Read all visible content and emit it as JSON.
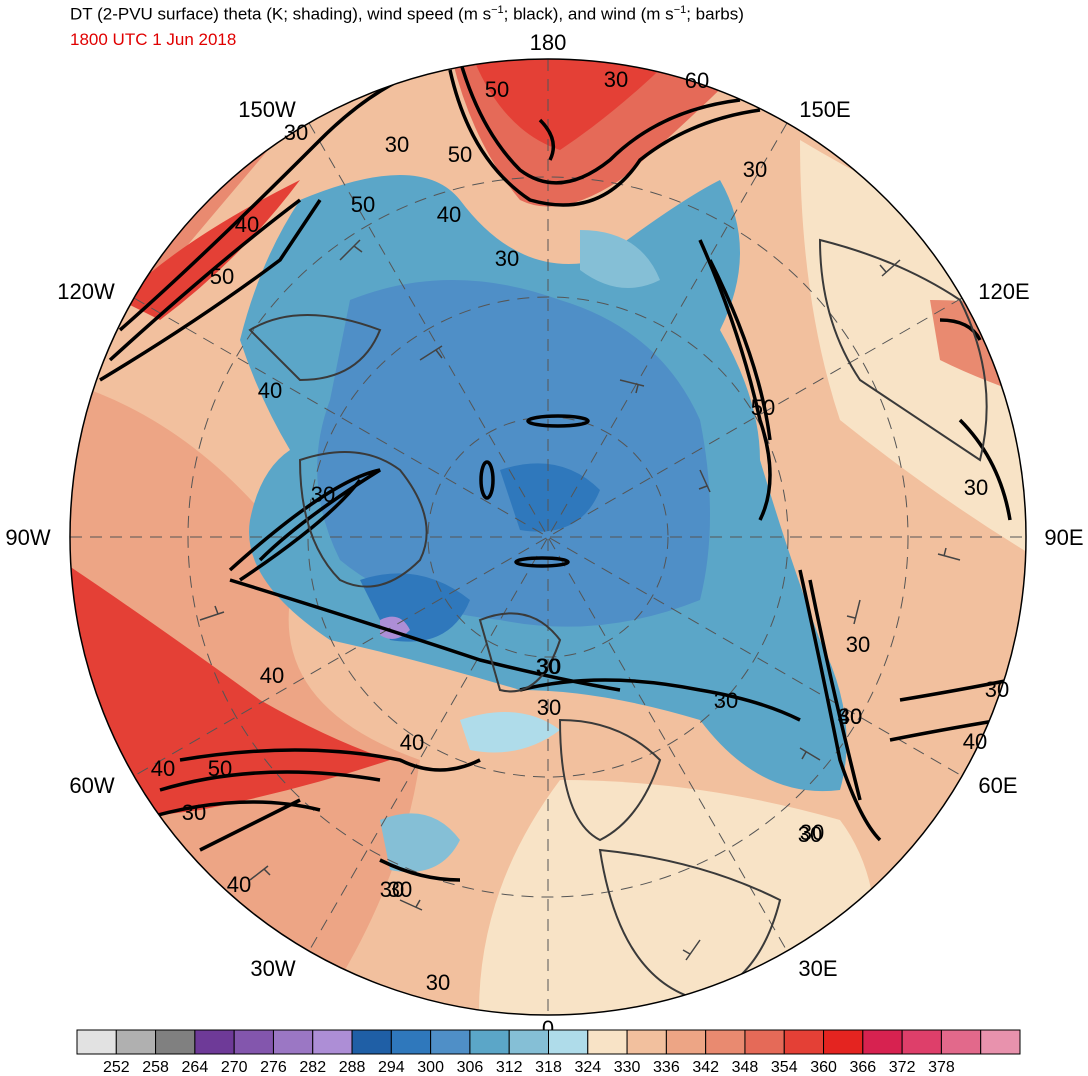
{
  "header": {
    "title": "DT (2-PVU surface) theta (K; shading), wind speed (m s",
    "title_sup1": "−1",
    "title_mid": "; black), and wind (m s",
    "title_sup2": "−1",
    "title_end": "; barbs)",
    "valid_time": "1800 UTC 1 Jun 2018"
  },
  "map": {
    "projection": "north polar stereographic",
    "longitude_labels": {
      "lon_180": "180",
      "lon_150w": "150W",
      "lon_150e": "150E",
      "lon_120w": "120W",
      "lon_120e": "120E",
      "lon_90w": "90W",
      "lon_90e": "90E",
      "lon_60w": "60W",
      "lon_60e": "60E",
      "lon_30w": "30W",
      "lon_30e": "30E",
      "lon_0": "0"
    },
    "contour_labels": [
      "30",
      "50",
      "30",
      "60",
      "50",
      "30",
      "30",
      "50",
      "30",
      "40",
      "40",
      "40",
      "50",
      "30",
      "30",
      "30",
      "50",
      "30",
      "30",
      "40",
      "30",
      "30",
      "30",
      "40",
      "40",
      "30",
      "40",
      "30",
      "30",
      "30",
      "40",
      "50",
      "30",
      "40",
      "30",
      "30"
    ]
  },
  "colorbar": {
    "colors": [
      "#e2e2e2",
      "#b0b0b0",
      "#808080",
      "#6e3a98",
      "#8356ad",
      "#9b77c4",
      "#ad8ed6",
      "#1f5fa6",
      "#2f78bc",
      "#4f8fc7",
      "#5ba6c8",
      "#85bfd6",
      "#afdcea",
      "#f8e3c6",
      "#f2c09e",
      "#eda585",
      "#e98a70",
      "#e56a58",
      "#e44036",
      "#e42420",
      "#d72250",
      "#de3f6a",
      "#e2698b",
      "#e892ad"
    ],
    "labels": [
      "252",
      "258",
      "264",
      "270",
      "276",
      "282",
      "288",
      "294",
      "300",
      "306",
      "312",
      "318",
      "324",
      "330",
      "336",
      "342",
      "348",
      "354",
      "360",
      "366",
      "372",
      "378"
    ]
  }
}
